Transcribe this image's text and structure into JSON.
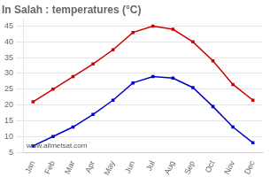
{
  "chart_data": {
    "type": "line",
    "title": "In Salah : temperatures (°C)",
    "categories": [
      "Jan",
      "Feb",
      "Mar",
      "Apr",
      "May",
      "Jun",
      "Jul",
      "Aug",
      "Sep",
      "Oct",
      "Nov",
      "Dec"
    ],
    "series": [
      {
        "color": "#cc0000",
        "marker": "square",
        "values": [
          21,
          25,
          29,
          33,
          37.5,
          43,
          45,
          44,
          40,
          34,
          26.5,
          21.5
        ]
      },
      {
        "color": "#0000cc",
        "marker": "square",
        "values": [
          7,
          10,
          13,
          17,
          21.5,
          27,
          29,
          28.5,
          25.5,
          19.5,
          13,
          8
        ]
      }
    ],
    "ylim": [
      5,
      47
    ],
    "yticks": [
      5,
      10,
      15,
      20,
      25,
      30,
      35,
      40,
      45
    ],
    "grid": "y",
    "annotation": "www.allmetsat.com"
  }
}
